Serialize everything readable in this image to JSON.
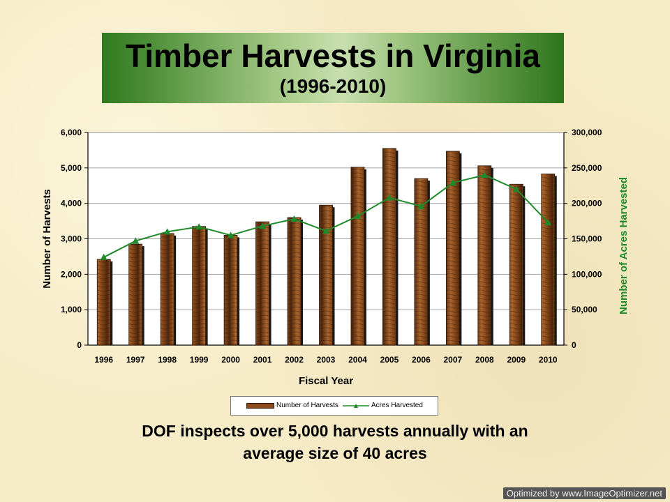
{
  "header": {
    "title": "Timber Harvests in Virginia",
    "subtitle": "(1996-2010)"
  },
  "footer": {
    "line1": "DOF inspects over 5,000 harvests annually with an",
    "line2": "average size of 40 acres"
  },
  "watermark": "Optimized by www.ImageOptimizer.net",
  "colors": {
    "bar": "#8a4a1c",
    "line": "#1f8a2a",
    "title_green_dark": "#2f7a1e",
    "right_axis_label": "#1f8a2a"
  },
  "chart_data": {
    "type": "bar",
    "xlabel": "Fiscal Year",
    "ylabel": "Number of Harvests",
    "y2label": "Number of Acres Harvested",
    "categories": [
      "1996",
      "1997",
      "1998",
      "1999",
      "2000",
      "2001",
      "2002",
      "2003",
      "2004",
      "2005",
      "2006",
      "2007",
      "2008",
      "2009",
      "2010"
    ],
    "ylim": [
      0,
      6000
    ],
    "y2lim": [
      0,
      300000
    ],
    "yticks": [
      "0",
      "1,000",
      "2,000",
      "3,000",
      "4,000",
      "5,000",
      "6,000"
    ],
    "y2ticks": [
      "0",
      "50,000",
      "100,000",
      "150,000",
      "200,000",
      "250,000",
      "300,000"
    ],
    "grid": true,
    "legend_position": "bottom",
    "series": [
      {
        "name": "Number of Harvests",
        "kind": "bar",
        "axis": "left",
        "values": [
          2420,
          2850,
          3150,
          3350,
          3100,
          3480,
          3600,
          3950,
          5020,
          5550,
          4700,
          5470,
          5060,
          4540,
          4830
        ]
      },
      {
        "name": "Acres Harvested",
        "kind": "line",
        "axis": "right",
        "values": [
          124000,
          147000,
          160000,
          167000,
          155000,
          168000,
          178000,
          161000,
          182000,
          208000,
          196000,
          229000,
          240000,
          220000,
          173000
        ]
      }
    ]
  }
}
